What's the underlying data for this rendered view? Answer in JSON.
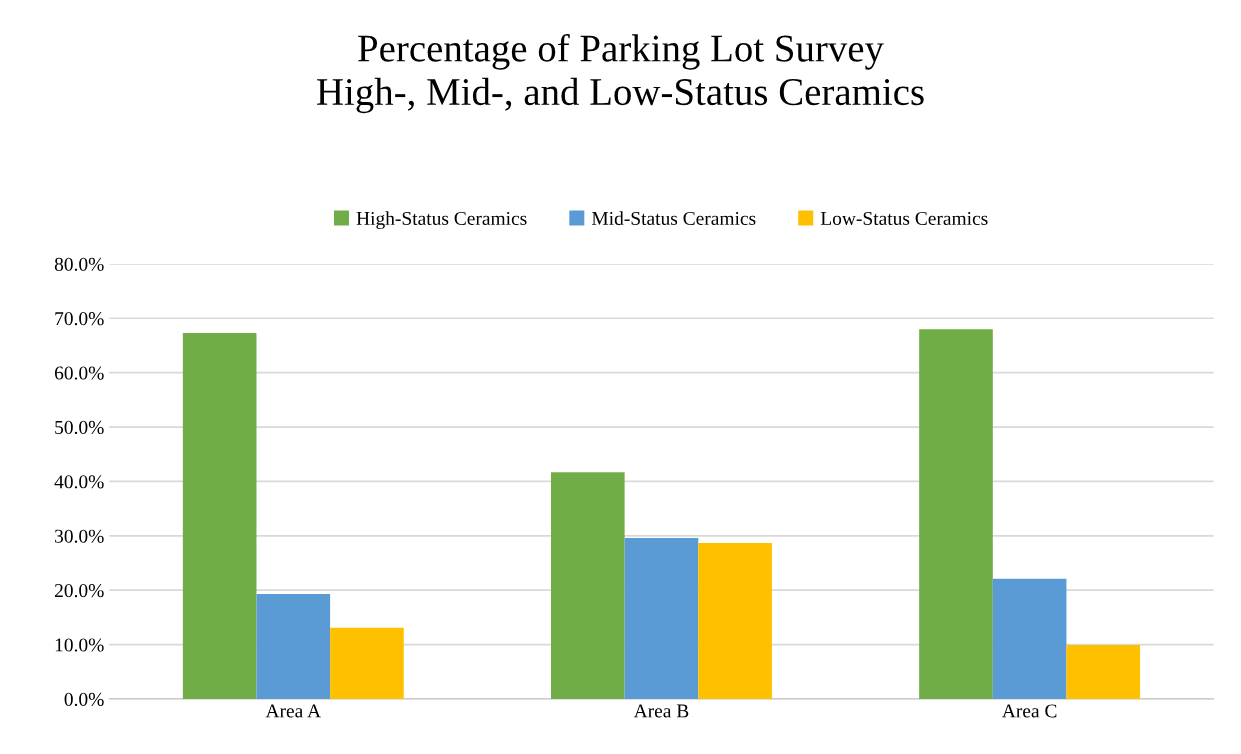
{
  "chart_data": {
    "type": "bar",
    "title": "Percentage of Parking Lot Survey\nHigh-, Mid-, and Low-Status Ceramics",
    "categories": [
      "Area A",
      "Area B",
      "Area C"
    ],
    "series": [
      {
        "name": "High-Status Ceramics",
        "color": "#70ad47",
        "values": [
          67.3,
          41.7,
          68.0
        ]
      },
      {
        "name": "Mid-Status Ceramics",
        "color": "#5b9bd5",
        "values": [
          19.3,
          29.6,
          22.1
        ]
      },
      {
        "name": "Low-Status Ceramics",
        "color": "#ffc000",
        "values": [
          13.1,
          28.7,
          9.9
        ]
      }
    ],
    "ylim": [
      0,
      80
    ],
    "yticks": [
      {
        "value": 0,
        "label": "0.0%"
      },
      {
        "value": 10,
        "label": "10.0%"
      },
      {
        "value": 20,
        "label": "20.0%"
      },
      {
        "value": 30,
        "label": "30.0%"
      },
      {
        "value": 40,
        "label": "40.0%"
      },
      {
        "value": 50,
        "label": "50.0%"
      },
      {
        "value": 60,
        "label": "60.0%"
      },
      {
        "value": 70,
        "label": "70.0%"
      },
      {
        "value": 80,
        "label": "80.0%"
      }
    ],
    "grid": "y",
    "legend": "top"
  }
}
